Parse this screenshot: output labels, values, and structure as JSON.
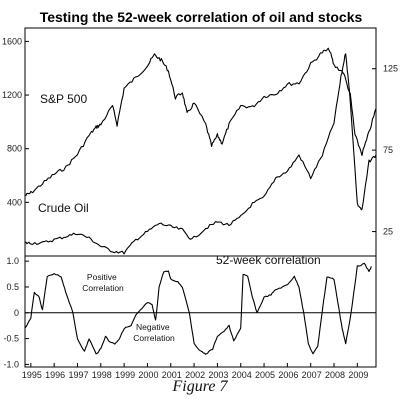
{
  "chart_data": {
    "type": "line",
    "title": "Testing the 52-week correlation of oil and stocks",
    "caption": "Figure 7",
    "x_ticks": [
      "1995",
      "1996",
      "1997",
      "1998",
      "1999",
      "2000",
      "2001",
      "2002",
      "2003",
      "2004",
      "2005",
      "2006",
      "2007",
      "2008",
      "2009"
    ],
    "xlim": [
      1994.75,
      2009.8
    ],
    "upper_panel": {
      "left_axis": {
        "ticks": [
          400,
          800,
          1200,
          1600
        ],
        "tick_labels": [
          "400",
          "800",
          "1200",
          "1600"
        ],
        "ylim": [
          0,
          1700
        ]
      },
      "right_axis": {
        "ticks": [
          25,
          75,
          125
        ],
        "tick_labels": [
          "25",
          "75",
          "125"
        ],
        "ylim": [
          10,
          150
        ]
      },
      "series": [
        {
          "name": "S&P 500",
          "axis": "left",
          "x": [
            1994.75,
            1995.0,
            1995.5,
            1996.0,
            1996.5,
            1997.0,
            1997.5,
            1997.8,
            1998.0,
            1998.5,
            1998.7,
            1999.0,
            1999.5,
            2000.0,
            2000.3,
            2000.6,
            2000.9,
            2001.2,
            2001.5,
            2001.7,
            2002.0,
            2002.5,
            2002.75,
            2003.0,
            2003.2,
            2003.5,
            2004.0,
            2004.5,
            2005.0,
            2005.5,
            2006.0,
            2006.5,
            2007.0,
            2007.5,
            2007.8,
            2008.0,
            2008.4,
            2008.7,
            2008.9,
            2009.2,
            2009.5,
            2009.8
          ],
          "y": [
            450,
            470,
            540,
            610,
            660,
            760,
            900,
            960,
            980,
            1120,
            980,
            1250,
            1330,
            1420,
            1500,
            1460,
            1380,
            1180,
            1220,
            1060,
            1140,
            980,
            820,
            900,
            840,
            980,
            1120,
            1110,
            1190,
            1210,
            1280,
            1290,
            1430,
            1520,
            1540,
            1420,
            1370,
            1200,
            900,
            760,
            920,
            1100
          ]
        },
        {
          "name": "Crude Oil",
          "axis": "right",
          "x": [
            1994.75,
            1995.0,
            1995.5,
            1996.0,
            1996.5,
            1997.0,
            1997.5,
            1998.0,
            1998.5,
            1999.0,
            1999.5,
            2000.0,
            2000.5,
            2001.0,
            2001.5,
            2001.9,
            2002.5,
            2003.0,
            2003.5,
            2004.0,
            2004.5,
            2005.0,
            2005.5,
            2006.0,
            2006.5,
            2007.0,
            2007.5,
            2008.0,
            2008.3,
            2008.5,
            2008.7,
            2009.0,
            2009.2,
            2009.5,
            2009.8
          ],
          "y": [
            18,
            18,
            18,
            20,
            22,
            24,
            21,
            16,
            13,
            12,
            20,
            25,
            30,
            28,
            26,
            20,
            27,
            31,
            29,
            34,
            42,
            46,
            58,
            62,
            72,
            58,
            72,
            92,
            120,
            135,
            105,
            42,
            38,
            68,
            72
          ]
        }
      ]
    },
    "lower_panel": {
      "axis": {
        "ticks": [
          -1.0,
          -0.5,
          0,
          0.5,
          1.0
        ],
        "tick_labels": [
          "-1.0",
          "-0.5",
          "0",
          "0.5",
          "1.0"
        ],
        "ylim": [
          -1.05,
          1.1
        ]
      },
      "series": [
        {
          "name": "52-week correlation",
          "x": [
            1994.75,
            1995.0,
            1995.15,
            1995.35,
            1995.5,
            1995.7,
            1996.0,
            1996.3,
            1996.5,
            1996.8,
            1997.0,
            1997.3,
            1997.5,
            1997.8,
            1998.0,
            1998.2,
            1998.35,
            1998.6,
            1998.8,
            1999.0,
            1999.3,
            1999.5,
            1999.7,
            2000.0,
            2000.2,
            2000.35,
            2000.5,
            2000.7,
            2000.9,
            2001.0,
            2001.3,
            2001.5,
            2001.8,
            2002.0,
            2002.3,
            2002.5,
            2002.8,
            2003.0,
            2003.3,
            2003.5,
            2003.7,
            2004.0,
            2004.1,
            2004.3,
            2004.5,
            2004.7,
            2005.0,
            2005.3,
            2005.5,
            2005.8,
            2006.0,
            2006.3,
            2006.5,
            2006.7,
            2006.9,
            2007.1,
            2007.3,
            2007.5,
            2007.7,
            2008.0,
            2008.2,
            2008.35,
            2008.5,
            2008.7,
            2009.0,
            2009.3,
            2009.5,
            2009.6
          ],
          "y": [
            -0.3,
            -0.1,
            0.4,
            0.3,
            0.05,
            0.7,
            0.75,
            0.7,
            0.4,
            0.0,
            -0.5,
            -0.75,
            -0.5,
            -0.8,
            -0.7,
            -0.45,
            -0.55,
            -0.6,
            -0.5,
            -0.3,
            -0.25,
            -0.05,
            0.05,
            0.2,
            0.15,
            -0.15,
            0.5,
            0.8,
            0.8,
            0.65,
            0.6,
            0.5,
            0.0,
            -0.6,
            -0.75,
            -0.8,
            -0.7,
            -0.45,
            -0.35,
            -0.25,
            -0.55,
            -0.3,
            0.75,
            0.7,
            0.3,
            0.0,
            0.3,
            0.35,
            0.45,
            0.5,
            0.55,
            0.7,
            0.5,
            0.0,
            -0.6,
            -0.8,
            -0.65,
            0.05,
            0.7,
            0.65,
            0.1,
            -0.3,
            -0.6,
            -0.1,
            0.9,
            0.95,
            0.8,
            0.9
          ]
        }
      ]
    },
    "annotations": [
      "Positive Correlation",
      "Negative Correlation"
    ]
  }
}
